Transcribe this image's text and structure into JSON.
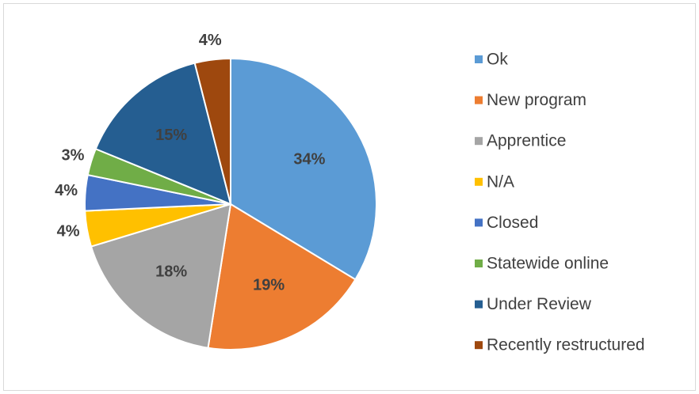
{
  "chart_data": {
    "type": "pie",
    "categories": [
      "Ok",
      "New program",
      "Apprentice",
      "N/A",
      "Closed",
      "Statewide online",
      "Under Review",
      "Recently restructured"
    ],
    "values": [
      34,
      19,
      18,
      4,
      4,
      3,
      15,
      4
    ],
    "value_labels": [
      "34%",
      "19%",
      "18%",
      "4%",
      "4%",
      "3%",
      "15%",
      "4%"
    ],
    "colors": [
      "#5b9bd5",
      "#ed7d31",
      "#a5a5a5",
      "#ffc000",
      "#4472c4",
      "#70ad47",
      "#255e91",
      "#9e480e"
    ],
    "legend": "right"
  }
}
